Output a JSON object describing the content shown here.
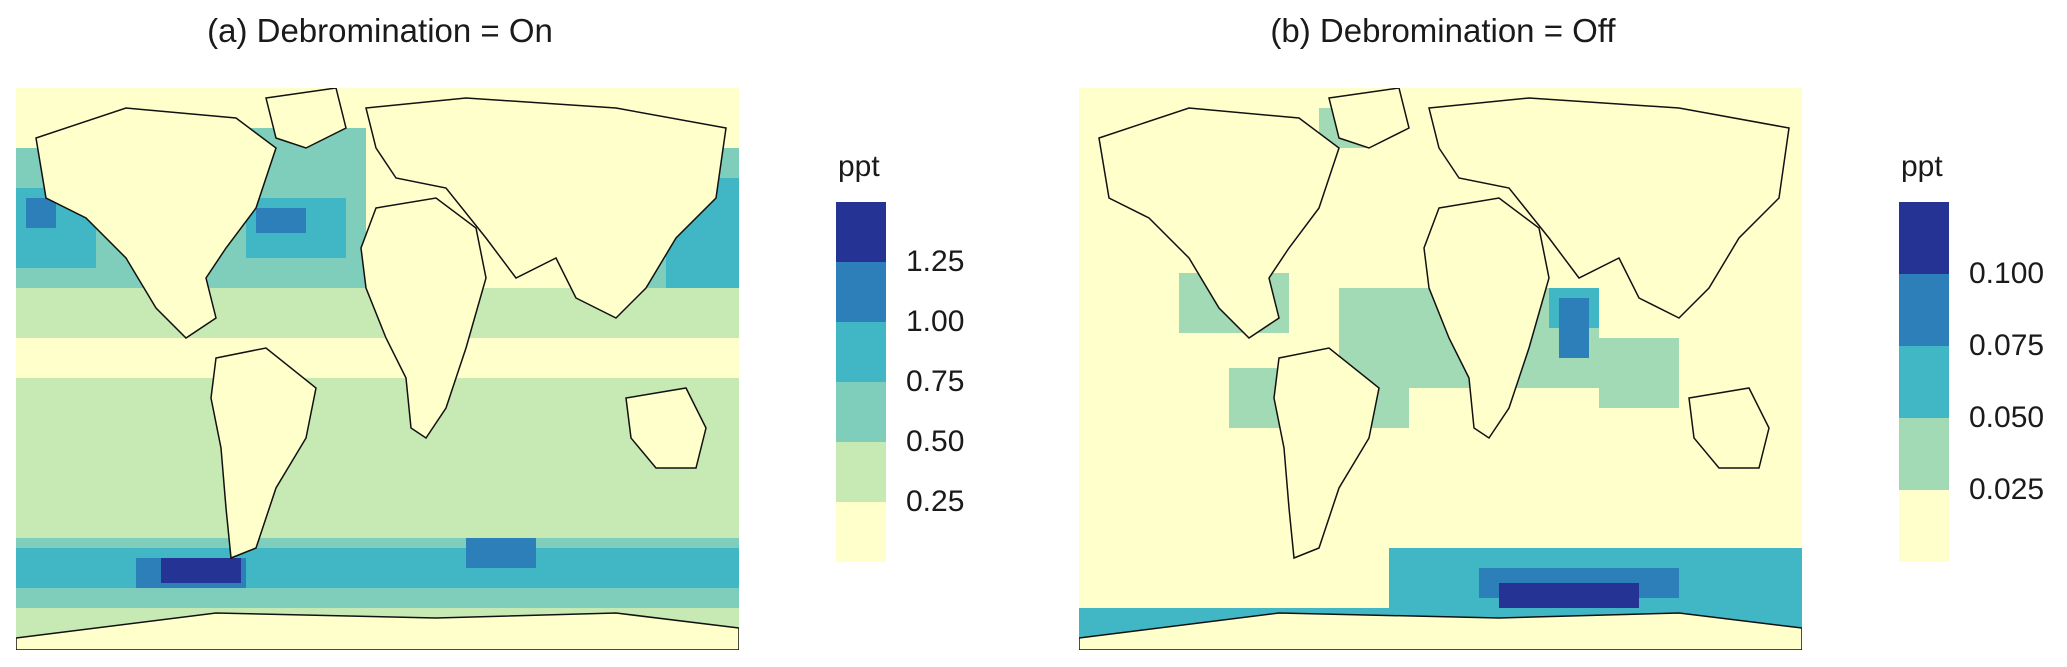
{
  "panels": [
    {
      "id": "a",
      "title": "(a) Debromination = On",
      "legend": {
        "unit": "ppt",
        "ticks": [
          "1.25",
          "1.00",
          "0.75",
          "0.50",
          "0.25"
        ],
        "bins": [
          {
            "color": "#ffffcc"
          },
          {
            "color": "#c7e9b4"
          },
          {
            "color": "#7fcdbb"
          },
          {
            "color": "#41b6c4"
          },
          {
            "color": "#2c7fb8"
          },
          {
            "color": "#253494"
          }
        ]
      }
    },
    {
      "id": "b",
      "title": "(b) Debromination = Off",
      "legend": {
        "unit": "ppt",
        "ticks": [
          "0.100",
          "0.075",
          "0.050",
          "0.025"
        ],
        "bins": [
          {
            "color": "#ffffcc"
          },
          {
            "color": "#a1dab4"
          },
          {
            "color": "#41b6c4"
          },
          {
            "color": "#2c7fb8"
          },
          {
            "color": "#253494"
          }
        ]
      }
    }
  ],
  "map_style": {
    "background": "#ffffcc",
    "coastline": "#111111"
  }
}
